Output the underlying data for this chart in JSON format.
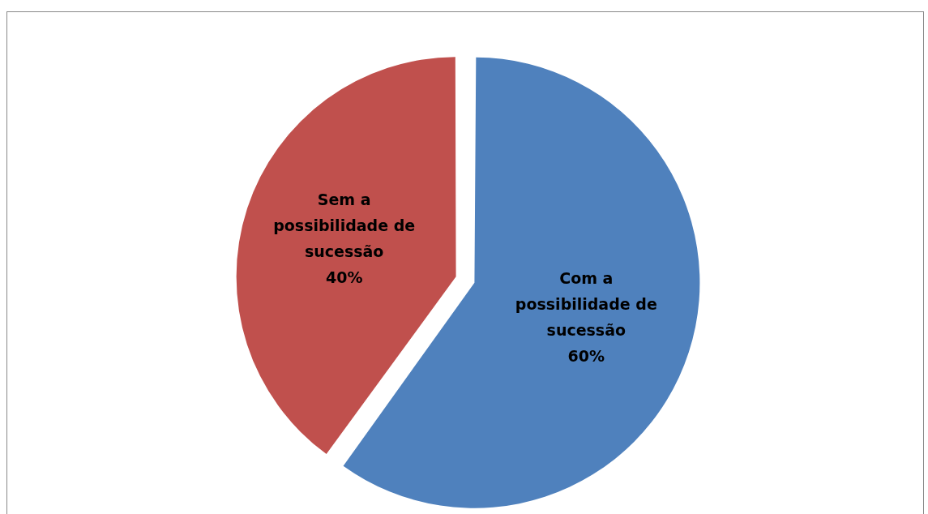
{
  "chart_data": {
    "type": "pie",
    "categories": [
      "Com a possibilidade de sucessão",
      "Sem a possibilidade de sucessão"
    ],
    "values": [
      60,
      40
    ],
    "colors": [
      "#4f81bd",
      "#c0504d"
    ],
    "value_labels": [
      "60%",
      "40%"
    ],
    "legend": false
  }
}
